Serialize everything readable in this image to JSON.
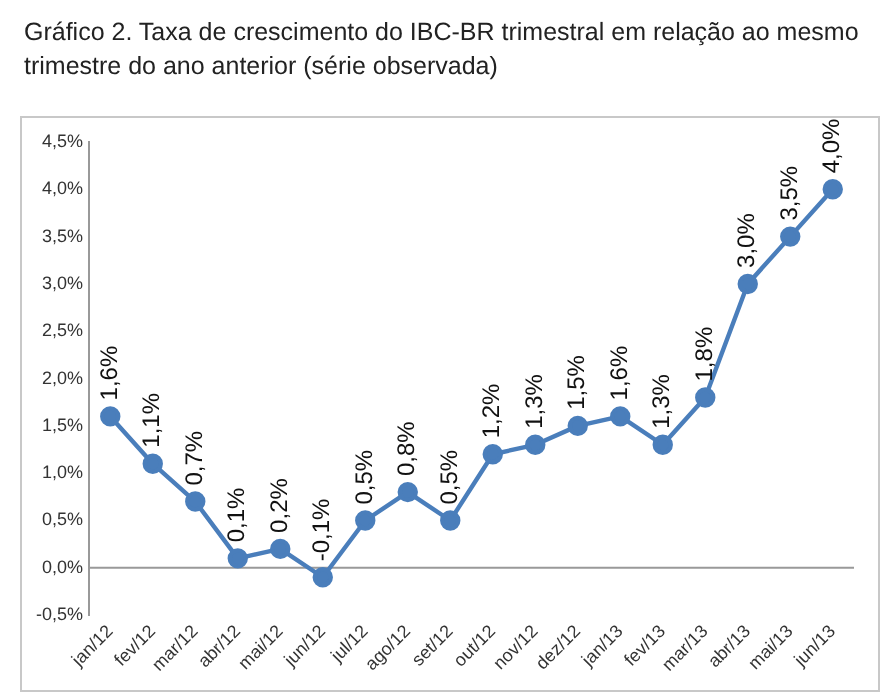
{
  "chart_data": {
    "type": "line",
    "title": "Gráfico 2. Taxa de crescimento do IBC-BR trimestral em relação ao mesmo trimestre do ano anterior (série observada)",
    "categories": [
      "jan/12",
      "fev/12",
      "mar/12",
      "abr/12",
      "mai/12",
      "jun/12",
      "jul/12",
      "ago/12",
      "set/12",
      "out/12",
      "nov/12",
      "dez/12",
      "jan/13",
      "fev/13",
      "mar/13",
      "abr/13",
      "mai/13",
      "jun/13"
    ],
    "series": [
      {
        "color": "#4a7ebb",
        "values": [
          1.6,
          1.1,
          0.7,
          0.1,
          0.2,
          -0.1,
          0.5,
          0.8,
          0.5,
          1.2,
          1.3,
          1.5,
          1.6,
          1.3,
          1.8,
          3.0,
          3.5,
          4.0
        ],
        "value_labels": [
          "1,6%",
          "1,1%",
          "0,7%",
          "0,1%",
          "0,2%",
          "-0,1%",
          "0,5%",
          "0,8%",
          "0,5%",
          "1,2%",
          "1,3%",
          "1,5%",
          "1,6%",
          "1,3%",
          "1,8%",
          "3,0%",
          "3,5%",
          "4,0%"
        ]
      }
    ],
    "ylim": [
      -0.5,
      4.5
    ],
    "yticks": [
      {
        "value": -0.5,
        "label": "-0,5%"
      },
      {
        "value": 0,
        "label": "0,0%"
      },
      {
        "value": 0.5,
        "label": "0,5%"
      },
      {
        "value": 1,
        "label": "1,0%"
      },
      {
        "value": 1.5,
        "label": "1,5%"
      },
      {
        "value": 2,
        "label": "2,0%"
      },
      {
        "value": 2.5,
        "label": "2,5%"
      },
      {
        "value": 3,
        "label": "3,0%"
      },
      {
        "value": 3.5,
        "label": "3,5%"
      },
      {
        "value": 4,
        "label": "4,0%"
      },
      {
        "value": 4.5,
        "label": "4,5%"
      }
    ],
    "ref_lines": [
      {
        "axis": "y",
        "value": 0,
        "color": "#999999"
      }
    ],
    "grid": false,
    "legend": false,
    "marker": "circle",
    "line_style": "solid"
  }
}
